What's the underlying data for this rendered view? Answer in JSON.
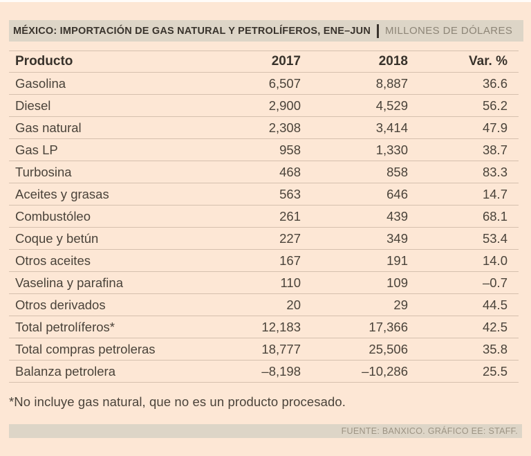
{
  "header": {
    "title": "MÉXICO: IMPORTACIÓN DE GAS NATURAL Y PETROLÍFEROS, ENE–JUN",
    "unit": "MILLONES DE DÓLARES"
  },
  "table": {
    "columns": [
      "Producto",
      "2017",
      "2018",
      "Var. %"
    ],
    "rows": [
      {
        "cells": [
          "Gasolina",
          "6,507",
          "8,887",
          "36.6"
        ]
      },
      {
        "cells": [
          "Diesel",
          "2,900",
          "4,529",
          "56.2"
        ]
      },
      {
        "cells": [
          "Gas natural",
          "2,308",
          "3,414",
          "47.9"
        ]
      },
      {
        "cells": [
          "Gas LP",
          "958",
          "1,330",
          "38.7"
        ]
      },
      {
        "cells": [
          "Turbosina",
          "468",
          "858",
          "83.3"
        ]
      },
      {
        "cells": [
          "Aceites y grasas",
          "563",
          "646",
          "14.7"
        ]
      },
      {
        "cells": [
          "Combustóleo",
          "261",
          "439",
          "68.1"
        ]
      },
      {
        "cells": [
          "Coque y betún",
          "227",
          "349",
          "53.4"
        ]
      },
      {
        "cells": [
          "Otros aceites",
          "167",
          "191",
          "14.0"
        ]
      },
      {
        "cells": [
          "Vaselina y parafina",
          "110",
          "109",
          "–0.7"
        ]
      },
      {
        "cells": [
          "Otros derivados",
          "20",
          "29",
          "44.5"
        ]
      },
      {
        "cells": [
          "Total petrolíferos*",
          "12,183",
          "17,366",
          "42.5"
        ]
      },
      {
        "cells": [
          "Total compras petroleras",
          "18,777",
          "25,506",
          "35.8"
        ]
      },
      {
        "cells": [
          "Balanza petrolera",
          "–8,198",
          "–10,286",
          "25.5"
        ]
      }
    ]
  },
  "footnote": "*No incluye gas natural, que no es un producto procesado.",
  "source": "FUENTE: BANXICO. GRÁFICO EE: STAFF.",
  "colors": {
    "background": "#fde7d5",
    "bar_background": "#ddd5c7",
    "title_text": "#39332c",
    "unit_text": "#8d8577",
    "body_text": "#4a433a",
    "row_line": "#d3c8ba",
    "source_text": "#9c9383"
  },
  "chart_data": {
    "type": "table",
    "title": "MÉXICO: IMPORTACIÓN DE GAS NATURAL Y PETROLÍFEROS, ENE–JUN",
    "unit": "MILLONES DE DÓLARES",
    "columns": [
      "Producto",
      "2017",
      "2018",
      "Var. %"
    ],
    "rows": [
      [
        "Gasolina",
        6507,
        8887,
        36.6
      ],
      [
        "Diesel",
        2900,
        4529,
        56.2
      ],
      [
        "Gas natural",
        2308,
        3414,
        47.9
      ],
      [
        "Gas LP",
        958,
        1330,
        38.7
      ],
      [
        "Turbosina",
        468,
        858,
        83.3
      ],
      [
        "Aceites y grasas",
        563,
        646,
        14.7
      ],
      [
        "Combustóleo",
        261,
        439,
        68.1
      ],
      [
        "Coque y betún",
        227,
        349,
        53.4
      ],
      [
        "Otros aceites",
        167,
        191,
        14.0
      ],
      [
        "Vaselina y parafina",
        110,
        109,
        -0.7
      ],
      [
        "Otros derivados",
        20,
        29,
        44.5
      ],
      [
        "Total petrolíferos*",
        12183,
        17366,
        42.5
      ],
      [
        "Total compras petroleras",
        18777,
        25506,
        35.8
      ],
      [
        "Balanza petrolera",
        -8198,
        -10286,
        25.5
      ]
    ],
    "footnote": "*No incluye gas natural, que no es un producto procesado.",
    "source": "FUENTE: BANXICO. GRÁFICO EE: STAFF."
  }
}
